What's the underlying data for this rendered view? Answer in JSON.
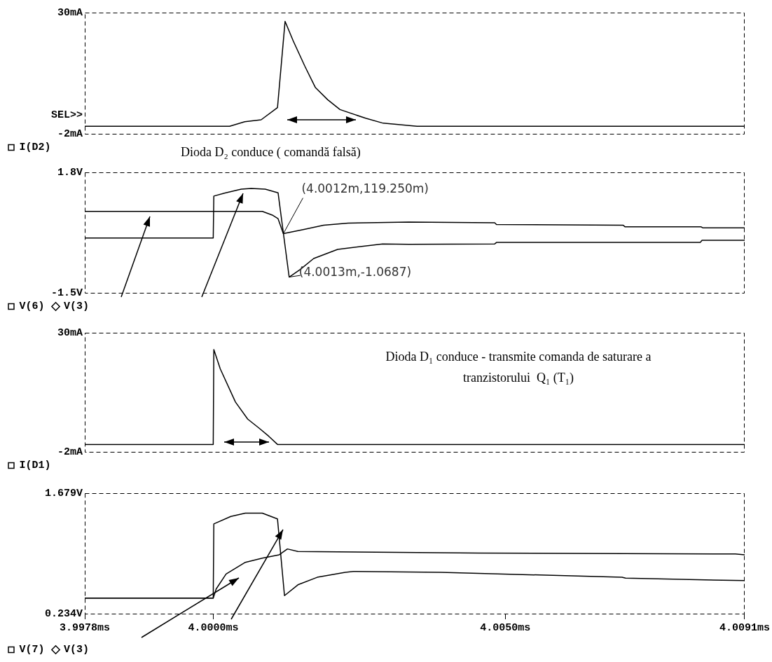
{
  "chart_data": [
    {
      "type": "line",
      "xlim": [
        3.9978,
        4.0091
      ],
      "ylim": [
        -2,
        30
      ],
      "yticks": [
        {
          "value": -2,
          "label": "-2mA"
        },
        {
          "value": 30,
          "label": "30mA"
        }
      ],
      "tick_labels": "y",
      "legend": "bottom left",
      "series": [
        {
          "name": "I(D2)",
          "color": "#000000",
          "x": [
            3.9978,
            4.0,
            4.00028,
            4.00054,
            4.00082,
            4.0011,
            4.00123,
            4.00137,
            4.00157,
            4.00175,
            4.00196,
            4.00217,
            4.00261,
            4.00291,
            4.00349,
            4.0091
          ],
          "values": [
            0,
            0,
            0,
            1.2,
            1.7,
            4.9,
            27.7,
            22.5,
            15.8,
            10.2,
            7.0,
            4.4,
            2.1,
            0.8,
            0,
            0
          ]
        }
      ],
      "annotations": [
        "SEL>>",
        "Dioda D₂ conduce ( comandă falsă)"
      ]
    },
    {
      "type": "line",
      "xlim": [
        3.9978,
        4.0091
      ],
      "ylim": [
        -1.5,
        1.8
      ],
      "yticks": [
        {
          "value": -1.5,
          "label": "-1.5V"
        },
        {
          "value": 1.8,
          "label": "1.8V"
        }
      ],
      "tick_labels": "y",
      "legend": "bottom left",
      "series": [
        {
          "name": "V(6)",
          "color": "#000000",
          "x": [
            3.9978,
            4.00084,
            4.00101,
            4.00111,
            4.0012,
            4.00154,
            4.00189,
            4.00231,
            4.00335,
            4.00482,
            4.00485,
            4.00702,
            4.00705,
            4.00835,
            4.00838,
            4.0091
          ],
          "values": [
            0.73,
            0.73,
            0.63,
            0.53,
            0.11925,
            0.23,
            0.35,
            0.41,
            0.44,
            0.42,
            0.37,
            0.35,
            0.31,
            0.31,
            0.28,
            0.28
          ]
        },
        {
          "name": "V(3)",
          "color": "#000000",
          "x": [
            3.9978,
            4.0,
            4.00001,
            4.00019,
            4.00048,
            4.00065,
            4.00089,
            4.00111,
            4.0013,
            4.00149,
            4.00172,
            4.00213,
            4.0029,
            4.00335,
            4.00482,
            4.00485,
            4.00834,
            4.00837,
            4.0091
          ],
          "values": [
            0,
            0,
            1.15,
            1.23,
            1.34,
            1.36,
            1.34,
            1.24,
            -1.0687,
            -0.86,
            -0.56,
            -0.31,
            -0.16,
            -0.17,
            -0.16,
            -0.12,
            -0.12,
            -0.06,
            -0.06
          ]
        }
      ],
      "annotations": [
        {
          "text": "(4.0012m,119.250m)",
          "x": 4.0012,
          "y": 0.11925
        },
        {
          "text": "(4.0013m,-1.0687)",
          "x": 4.0013,
          "y": -1.0687
        }
      ]
    },
    {
      "type": "line",
      "xlim": [
        3.9978,
        4.0091
      ],
      "ylim": [
        -2,
        30
      ],
      "yticks": [
        {
          "value": -2,
          "label": "-2mA"
        },
        {
          "value": 30,
          "label": "30mA"
        }
      ],
      "tick_labels": "y",
      "legend": "bottom left",
      "series": [
        {
          "name": "I(D1)",
          "color": "#000000",
          "x": [
            3.9978,
            4.0,
            4.00001,
            4.00012,
            4.00038,
            4.00059,
            4.00079,
            4.00095,
            4.0011,
            4.0091
          ],
          "values": [
            0,
            0,
            25.5,
            20.3,
            11.4,
            6.8,
            4.3,
            2.2,
            0,
            0
          ]
        }
      ],
      "annotations": [
        "Dioda D₁ conduce - transmite comanda de saturare a tranzistorului  Q₁ (T₁)"
      ]
    },
    {
      "type": "line",
      "xlim": [
        3.9978,
        4.0091
      ],
      "ylim": [
        0.234,
        1.679
      ],
      "xticks": [
        {
          "value": 3.9978,
          "label": "3.9978ms"
        },
        {
          "value": 4.0,
          "label": "4.0000ms"
        },
        {
          "value": 4.005,
          "label": "4.0050ms"
        },
        {
          "value": 4.0091,
          "label": "4.0091ms"
        }
      ],
      "yticks": [
        {
          "value": 0.234,
          "label": "0.234V"
        },
        {
          "value": 1.679,
          "label": "1.679V"
        }
      ],
      "legend": "bottom left",
      "series": [
        {
          "name": "V(7)",
          "color": "#000000",
          "x": [
            3.9978,
            4.0,
            4.00005,
            4.00022,
            4.00055,
            4.00084,
            4.00113,
            4.00127,
            4.00145,
            4.00455,
            4.00894,
            4.0091
          ],
          "values": [
            0.42,
            0.42,
            0.53,
            0.71,
            0.85,
            0.9,
            0.94,
            1.01,
            0.98,
            0.96,
            0.95,
            0.94
          ]
        },
        {
          "name": "V(3)",
          "color": "#000000",
          "x": [
            3.9978,
            4.0,
            4.00001,
            4.0003,
            4.00055,
            4.00084,
            4.0011,
            4.00122,
            4.00145,
            4.00178,
            4.00226,
            4.0024,
            4.0039,
            4.007,
            4.00706,
            4.0091
          ],
          "values": [
            0.42,
            0.42,
            1.31,
            1.4,
            1.44,
            1.44,
            1.37,
            0.45,
            0.58,
            0.67,
            0.73,
            0.74,
            0.73,
            0.67,
            0.66,
            0.63
          ]
        }
      ]
    }
  ]
}
